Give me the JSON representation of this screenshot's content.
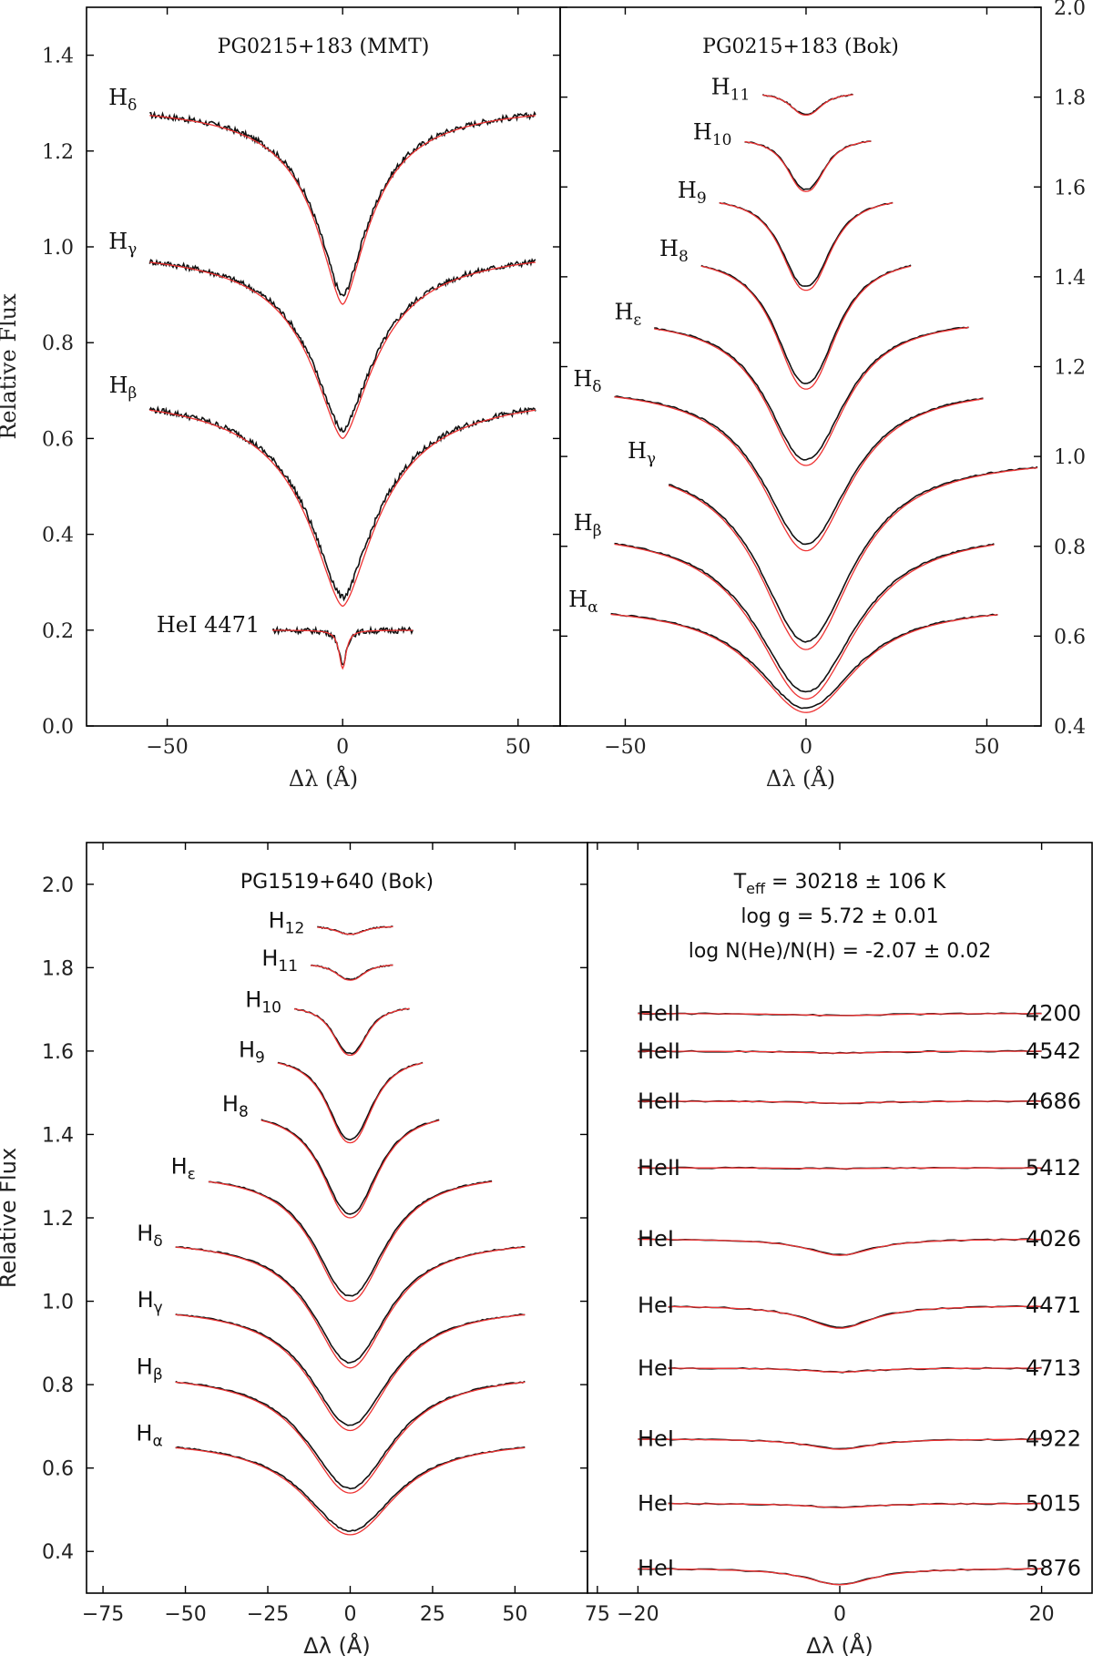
{
  "colors": {
    "observed": "#111111",
    "model": "#ee3333",
    "frame": "#000000"
  },
  "chart_data": [
    {
      "id": "p1",
      "type": "line",
      "title": "PG0215+183 (MMT)",
      "font": "serif",
      "xlabel": "Δλ (Å)",
      "ylabel": "Relative Flux",
      "xlim": [
        -73,
        62
      ],
      "ylim": [
        0.0,
        1.5
      ],
      "xticks": [
        -50,
        0,
        50
      ],
      "xtick_labels": [
        "−50",
        "0",
        "50"
      ],
      "yticks": [
        0.0,
        0.2,
        0.4,
        0.6,
        0.8,
        1.0,
        1.2,
        1.4
      ],
      "ytick_labels": [
        "0.0",
        "0.2",
        "0.4",
        "0.6",
        "0.8",
        "1.0",
        "1.2",
        "1.4"
      ],
      "label_side": "left",
      "noise": 0.006,
      "series": [
        {
          "name": "Hδ",
          "base": "H",
          "sub": "δ",
          "x0": -55,
          "x1": 55,
          "cont": 1.3,
          "center": 0.88,
          "width": 10,
          "sharp": 0.6
        },
        {
          "name": "Hγ",
          "base": "H",
          "sub": "γ",
          "x0": -55,
          "x1": 55,
          "cont": 1.0,
          "center": 0.6,
          "width": 12,
          "sharp": 0.6
        },
        {
          "name": "Hβ",
          "base": "H",
          "sub": "β",
          "x0": -55,
          "x1": 55,
          "cont": 0.7,
          "center": 0.25,
          "width": 13,
          "sharp": 0.6
        },
        {
          "name": "HeI 4471",
          "base": "HeI 4471",
          "sub": "",
          "x0": -20,
          "x1": 20,
          "cont": 0.2,
          "center": 0.12,
          "width": 1.2,
          "sharp": 1.0
        }
      ]
    },
    {
      "id": "p2",
      "type": "line",
      "title": "PG0215+183 (Bok)",
      "font": "serif",
      "xlabel": "Δλ (Å)",
      "ylabel": "",
      "xlim": [
        -68,
        65
      ],
      "ylim": [
        0.4,
        2.0
      ],
      "xticks": [
        -50,
        0,
        50
      ],
      "xtick_labels": [
        "−50",
        "0",
        "50"
      ],
      "yticks": [
        0.4,
        0.6,
        0.8,
        1.0,
        1.2,
        1.4,
        1.6,
        1.8,
        2.0
      ],
      "ytick_labels": [
        "0.4",
        "0.6",
        "0.8",
        "1.0",
        "1.2",
        "1.4",
        "1.6",
        "1.8",
        "2.0"
      ],
      "yaxis_side": "right",
      "label_side": "left",
      "noise": 0.0,
      "series": [
        {
          "name": "H11",
          "base": "H",
          "sub": "11",
          "x0": -12,
          "x1": 13,
          "cont": 1.81,
          "center": 1.76,
          "width": 5,
          "sharp": 1.4
        },
        {
          "name": "H10",
          "base": "H",
          "sub": "10",
          "x0": -17,
          "x1": 18,
          "cont": 1.71,
          "center": 1.59,
          "width": 6,
          "sharp": 1.4
        },
        {
          "name": "H9",
          "base": "H",
          "sub": "9",
          "x0": -24,
          "x1": 24,
          "cont": 1.58,
          "center": 1.37,
          "width": 8,
          "sharp": 1.3
        },
        {
          "name": "H8",
          "base": "H",
          "sub": "8",
          "x0": -29,
          "x1": 29,
          "cont": 1.45,
          "center": 1.15,
          "width": 10,
          "sharp": 1.2
        },
        {
          "name": "Hε",
          "base": "H",
          "sub": "ε",
          "x0": -42,
          "x1": 45,
          "cont": 1.31,
          "center": 0.98,
          "width": 13,
          "sharp": 1.1
        },
        {
          "name": "Hδ",
          "base": "H",
          "sub": "δ",
          "x0": -53,
          "x1": 49,
          "cont": 1.16,
          "center": 0.79,
          "width": 15,
          "sharp": 1.0
        },
        {
          "name": "Hγ",
          "base": "H",
          "sub": "γ",
          "x0": -38,
          "x1": 64,
          "cont": 1.0,
          "center": 0.57,
          "width": 16,
          "sharp": 1.0
        },
        {
          "name": "Hβ",
          "base": "H",
          "sub": "β",
          "x0": -53,
          "x1": 52,
          "cont": 0.84,
          "center": 0.46,
          "width": 17,
          "sharp": 1.0
        },
        {
          "name": "Hα",
          "base": "H",
          "sub": "α",
          "x0": -54,
          "x1": 53,
          "cont": 0.67,
          "center": 0.43,
          "width": 17,
          "sharp": 1.0
        }
      ]
    },
    {
      "id": "p3",
      "type": "line",
      "title": "PG1519+640 (Bok)",
      "font": "sans",
      "xlabel": "Δλ (Å)",
      "ylabel": "Relative Flux",
      "xlim": [
        -80,
        72
      ],
      "ylim": [
        0.3,
        2.1
      ],
      "xticks": [
        -75,
        -50,
        -25,
        0,
        25,
        50,
        75
      ],
      "xtick_labels": [
        "−75",
        "−50",
        "−25",
        "0",
        "25",
        "50",
        "75"
      ],
      "yticks": [
        0.4,
        0.6,
        0.8,
        1.0,
        1.2,
        1.4,
        1.6,
        1.8,
        2.0
      ],
      "ytick_labels": [
        "0.4",
        "0.6",
        "0.8",
        "1.0",
        "1.2",
        "1.4",
        "1.6",
        "1.8",
        "2.0"
      ],
      "label_side": "left",
      "noise": 0.0,
      "series": [
        {
          "name": "H12",
          "base": "H",
          "sub": "12",
          "x0": -10,
          "x1": 13,
          "cont": 1.9,
          "center": 1.88,
          "width": 5,
          "sharp": 1.4
        },
        {
          "name": "H11",
          "base": "H",
          "sub": "11",
          "x0": -12,
          "x1": 13,
          "cont": 1.81,
          "center": 1.77,
          "width": 5,
          "sharp": 1.4
        },
        {
          "name": "H10",
          "base": "H",
          "sub": "10",
          "x0": -17,
          "x1": 18,
          "cont": 1.71,
          "center": 1.59,
          "width": 6,
          "sharp": 1.4
        },
        {
          "name": "H9",
          "base": "H",
          "sub": "9",
          "x0": -22,
          "x1": 22,
          "cont": 1.59,
          "center": 1.38,
          "width": 8,
          "sharp": 1.3
        },
        {
          "name": "H8",
          "base": "H",
          "sub": "8",
          "x0": -27,
          "x1": 27,
          "cont": 1.46,
          "center": 1.2,
          "width": 10,
          "sharp": 1.2
        },
        {
          "name": "Hε",
          "base": "H",
          "sub": "ε",
          "x0": -43,
          "x1": 43,
          "cont": 1.31,
          "center": 1.0,
          "width": 13,
          "sharp": 1.1
        },
        {
          "name": "Hδ",
          "base": "H",
          "sub": "δ",
          "x0": -53,
          "x1": 53,
          "cont": 1.15,
          "center": 0.84,
          "width": 14,
          "sharp": 1.0
        },
        {
          "name": "Hγ",
          "base": "H",
          "sub": "γ",
          "x0": -53,
          "x1": 53,
          "cont": 0.99,
          "center": 0.69,
          "width": 15,
          "sharp": 1.0
        },
        {
          "name": "Hβ",
          "base": "H",
          "sub": "β",
          "x0": -53,
          "x1": 53,
          "cont": 0.83,
          "center": 0.54,
          "width": 16,
          "sharp": 1.0
        },
        {
          "name": "Hα",
          "base": "H",
          "sub": "α",
          "x0": -53,
          "x1": 53,
          "cont": 0.67,
          "center": 0.44,
          "width": 17,
          "sharp": 1.0
        }
      ]
    },
    {
      "id": "p4",
      "type": "line",
      "title": "",
      "font": "sans",
      "xlabel": "Δλ (Å)",
      "ylabel": "",
      "xlim": [
        -25,
        25
      ],
      "ylim": [
        0.3,
        2.1
      ],
      "xticks": [
        -20,
        0,
        20
      ],
      "xtick_labels": [
        "−20",
        "0",
        "20"
      ],
      "yticks": [],
      "ytick_labels": [],
      "label_side": "both",
      "noise": 0.0,
      "annotations": [
        "T_eff = 30218 ± 106 K",
        "log g = 5.72 ± 0.01",
        "log N(He)/N(H) = -2.07 ± 0.02"
      ],
      "annotation_parts": {
        "teff_main": "T",
        "teff_sub": "eff",
        "teff_rest": " = 30218 ± 106 K",
        "logg": "log g = 5.72 ± 0.01",
        "loghe": "log N(He)/N(H) = -2.07 ± 0.02"
      },
      "series": [
        {
          "name": "HeII 4200",
          "label_left": "HeII",
          "label_right": "4200",
          "x0": -20,
          "x1": 20,
          "cont": 1.69,
          "center": 1.685,
          "width": 5,
          "sharp": 1.0
        },
        {
          "name": "HeII 4542",
          "label_left": "HeII",
          "label_right": "4542",
          "x0": -20,
          "x1": 20,
          "cont": 1.6,
          "center": 1.595,
          "width": 5,
          "sharp": 1.0
        },
        {
          "name": "HeII 4686",
          "label_left": "HeII",
          "label_right": "4686",
          "x0": -20,
          "x1": 20,
          "cont": 1.48,
          "center": 1.475,
          "width": 5,
          "sharp": 1.0
        },
        {
          "name": "HeII 5412",
          "label_left": "HeII",
          "label_right": "5412",
          "x0": -20,
          "x1": 20,
          "cont": 1.32,
          "center": 1.318,
          "width": 5,
          "sharp": 1.0
        },
        {
          "name": "HeI 4026",
          "label_left": "HeI",
          "label_right": "4026",
          "x0": -20,
          "x1": 20,
          "cont": 1.15,
          "center": 1.11,
          "width": 4,
          "sharp": 1.0
        },
        {
          "name": "HeI 4471",
          "label_left": "HeI",
          "label_right": "4471",
          "x0": -17,
          "x1": 20,
          "cont": 0.99,
          "center": 0.935,
          "width": 4,
          "sharp": 1.0
        },
        {
          "name": "HeI 4713",
          "label_left": "HeI",
          "label_right": "4713",
          "x0": -17,
          "x1": 20,
          "cont": 0.84,
          "center": 0.83,
          "width": 4,
          "sharp": 1.0
        },
        {
          "name": "HeI 4922",
          "label_left": "HeI",
          "label_right": "4922",
          "x0": -20,
          "x1": 20,
          "cont": 0.67,
          "center": 0.645,
          "width": 4,
          "sharp": 1.0
        },
        {
          "name": "HeI 5015",
          "label_left": "HeI",
          "label_right": "5015",
          "x0": -17,
          "x1": 20,
          "cont": 0.515,
          "center": 0.505,
          "width": 4,
          "sharp": 1.0
        },
        {
          "name": "HeI 5876",
          "label_left": "HeI",
          "label_right": "5876",
          "x0": -20,
          "x1": 20,
          "cont": 0.36,
          "center": 0.32,
          "width": 4,
          "sharp": 1.0
        }
      ]
    }
  ]
}
